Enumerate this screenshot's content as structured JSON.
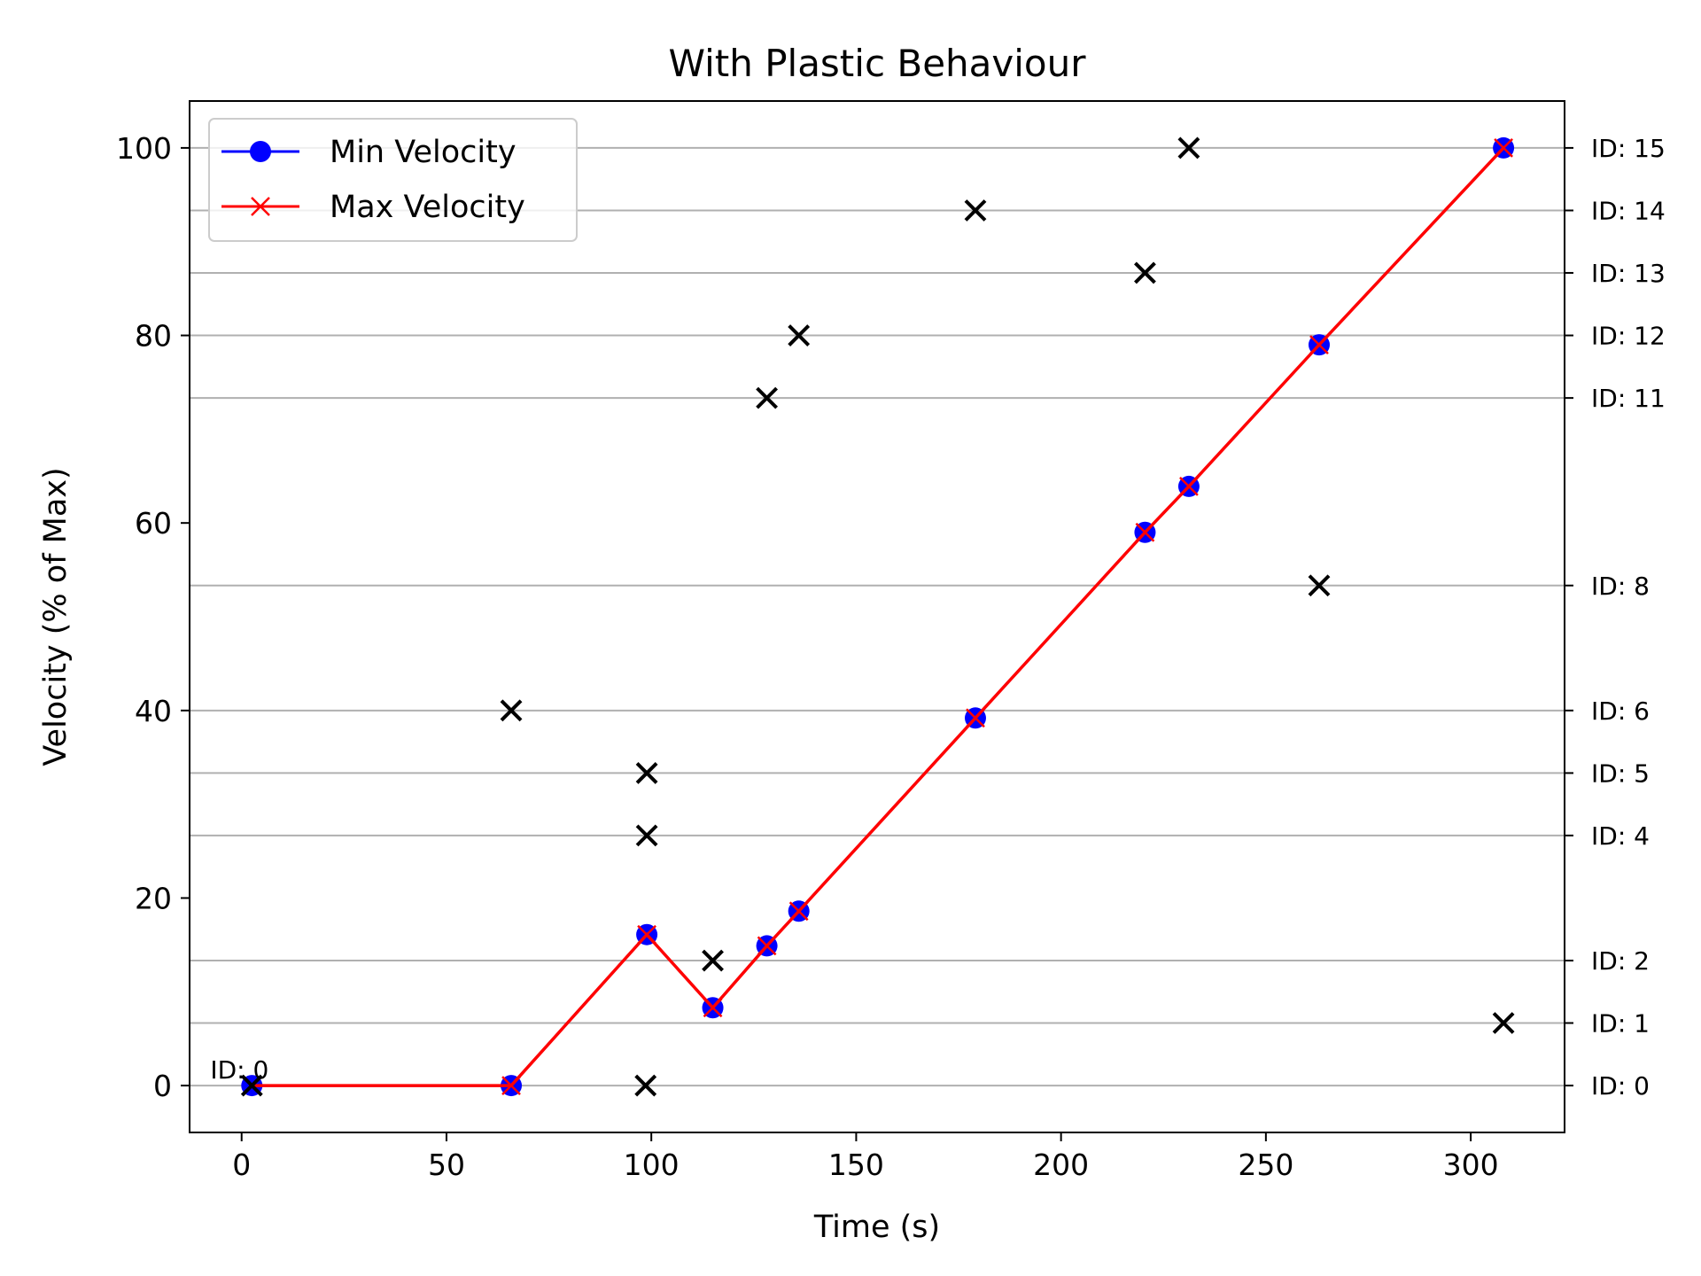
{
  "chart_data": {
    "type": "line",
    "title": "With Plastic Behaviour",
    "xlabel": "Time (s)",
    "ylabel": "Velocity (% of Max)",
    "xlim": [
      -12.7,
      322.9
    ],
    "ylim": [
      -5,
      105
    ],
    "x_ticks": [
      0,
      50,
      100,
      150,
      200,
      250,
      300
    ],
    "y_ticks": [
      0,
      20,
      40,
      60,
      80,
      100
    ],
    "grid": "horizontal lines at ID levels",
    "legend_position": "upper-left",
    "series": [
      {
        "name": "Min Velocity",
        "color": "#0000ff",
        "marker": "circle",
        "x": [
          2.5,
          65.8,
          98.9,
          115.0,
          128.2,
          136.0,
          179.1,
          220.5,
          231.2,
          263.0,
          308.0
        ],
        "y": [
          0,
          0,
          16.1,
          8.3,
          14.9,
          18.6,
          39.2,
          59.0,
          63.9,
          79.0,
          100
        ]
      },
      {
        "name": "Max Velocity",
        "color": "#ff0000",
        "marker": "x",
        "x": [
          2.5,
          65.8,
          98.9,
          115.0,
          128.2,
          136.0,
          179.1,
          220.5,
          231.2,
          263.0,
          308.0
        ],
        "y": [
          0,
          0,
          16.1,
          8.3,
          14.9,
          18.6,
          39.2,
          59.0,
          63.9,
          79.0,
          100
        ]
      }
    ],
    "id_markers": {
      "color": "#000000",
      "marker": "x",
      "x": [
        2.5,
        65.8,
        98.6,
        98.9,
        98.9,
        115.0,
        128.2,
        136.0,
        179.1,
        220.5,
        231.2,
        263.0,
        308.0
      ],
      "y": [
        0,
        40,
        0,
        26.67,
        33.33,
        13.33,
        73.33,
        80.0,
        93.33,
        86.67,
        100,
        53.33,
        6.67
      ]
    },
    "id_levels": [
      {
        "label": "ID: 0",
        "y": 0
      },
      {
        "label": "ID: 1",
        "y": 6.67
      },
      {
        "label": "ID: 2",
        "y": 13.33
      },
      {
        "label": "ID: 4",
        "y": 26.67
      },
      {
        "label": "ID: 5",
        "y": 33.33
      },
      {
        "label": "ID: 6",
        "y": 40.0
      },
      {
        "label": "ID: 8",
        "y": 53.33
      },
      {
        "label": "ID: 11",
        "y": 73.33
      },
      {
        "label": "ID: 12",
        "y": 80.0
      },
      {
        "label": "ID: 13",
        "y": 86.67
      },
      {
        "label": "ID: 14",
        "y": 93.33
      },
      {
        "label": "ID: 15",
        "y": 100
      }
    ],
    "annotation": {
      "text": "ID: 0",
      "x": 2.5,
      "y": 0
    }
  }
}
